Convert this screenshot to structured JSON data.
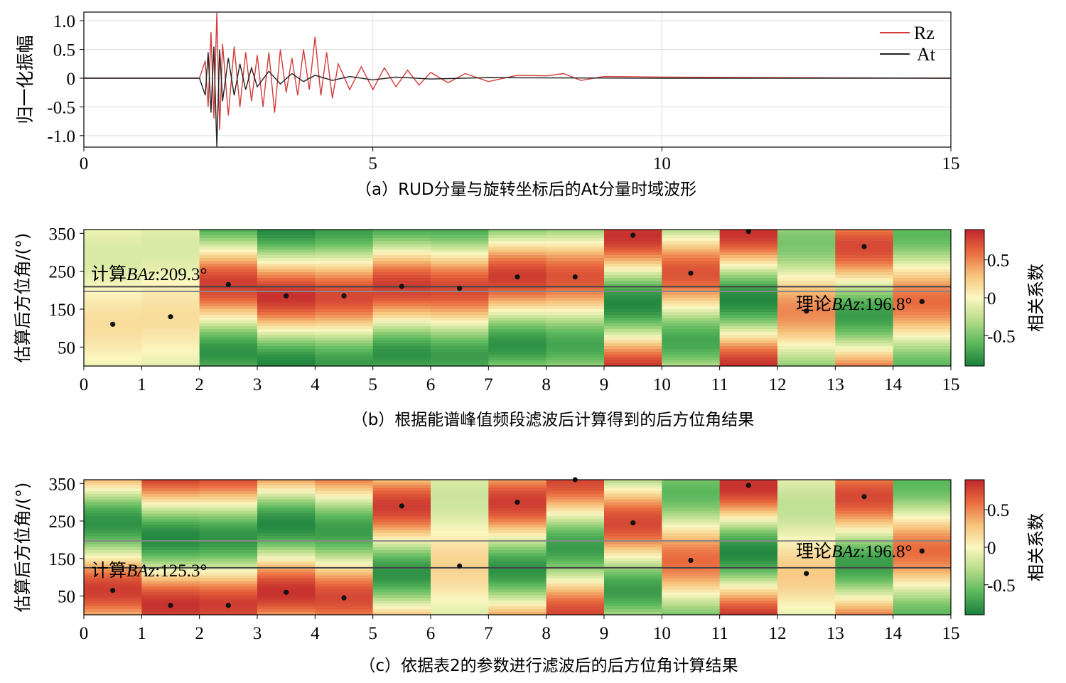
{
  "colors": {
    "rz": "#d43a3a",
    "at": "#222222",
    "grid": "#dddddd",
    "computed_line": "#444444",
    "theory_line": "#888888",
    "colormap": [
      "#1a7f3c",
      "#5cb85c",
      "#b5dc8a",
      "#fbf7c0",
      "#f6c27a",
      "#e96b3f",
      "#c0262b"
    ]
  },
  "panel_a": {
    "caption": "（a）RUD分量与旋转坐标后的At分量时域波形",
    "ylabel": "归一化振幅",
    "legend": [
      "Rz",
      "At"
    ]
  },
  "panel_b": {
    "caption": "（b）根据能谱峰值频段滤波后计算得到的后方位角结果",
    "ylabel": "估算后方位角/(°)",
    "colorbar_label": "相关系数",
    "computed_label": "计算",
    "computed_value": ":209.3°",
    "theory_label": "理论",
    "theory_value": ":196.8°",
    "baz_symbol": "BAz"
  },
  "panel_c": {
    "caption": "（c）依据表2的参数进行滤波后的后方位角计算结果",
    "ylabel": "估算后方位角/(°)",
    "colorbar_label": "相关系数",
    "computed_label": "计算",
    "computed_value": ":125.3°",
    "theory_label": "理论",
    "theory_value": ":196.8°",
    "baz_symbol": "BAz"
  },
  "chart_data": [
    {
      "type": "line",
      "title": "（a）RUD分量与旋转坐标后的At分量时域波形",
      "xlabel": "",
      "ylabel": "归一化振幅",
      "xlim": [
        0,
        15
      ],
      "ylim": [
        -1.2,
        1.15
      ],
      "xticks": [
        0,
        5,
        10,
        15
      ],
      "yticks": [
        1.0,
        0.5,
        0,
        -0.5,
        -1.0
      ],
      "ytick_labels": [
        "1.0",
        "0.5",
        "0",
        "-0.5",
        "-1.0"
      ],
      "grid": true,
      "legend_position": "top-right",
      "series": [
        {
          "name": "Rz",
          "x": [
            0,
            2.0,
            2.1,
            2.15,
            2.2,
            2.25,
            2.3,
            2.35,
            2.4,
            2.5,
            2.6,
            2.7,
            2.8,
            2.9,
            3.0,
            3.1,
            3.2,
            3.3,
            3.4,
            3.5,
            3.6,
            3.7,
            3.8,
            3.9,
            4.0,
            4.1,
            4.2,
            4.3,
            4.4,
            4.6,
            4.8,
            5.0,
            5.2,
            5.4,
            5.6,
            5.8,
            6.0,
            6.3,
            6.6,
            7.0,
            7.5,
            8.0,
            8.3,
            8.6,
            9.0,
            10.0,
            12.0,
            15.0
          ],
          "values": [
            0,
            0,
            0.3,
            -0.5,
            0.8,
            -0.7,
            1.15,
            -0.9,
            0.6,
            -0.65,
            0.55,
            -0.5,
            0.45,
            -0.4,
            0.4,
            -0.5,
            0.45,
            -0.6,
            0.5,
            -0.25,
            0.35,
            -0.3,
            0.5,
            -0.2,
            0.72,
            -0.3,
            0.45,
            -0.35,
            0.25,
            -0.2,
            0.2,
            -0.2,
            0.18,
            -0.15,
            0.14,
            -0.12,
            0.1,
            -0.08,
            0.08,
            -0.06,
            0.05,
            0.04,
            0.08,
            -0.04,
            0.03,
            0.02,
            0.01,
            0
          ]
        },
        {
          "name": "At",
          "x": [
            0,
            2.0,
            2.1,
            2.15,
            2.2,
            2.25,
            2.3,
            2.35,
            2.4,
            2.5,
            2.6,
            2.7,
            2.8,
            2.9,
            3.0,
            3.2,
            3.4,
            3.6,
            3.8,
            4.0,
            4.3,
            4.6,
            5.0,
            5.4,
            6.0,
            7.0,
            8.0,
            10.0,
            15.0
          ],
          "values": [
            0,
            0,
            -0.3,
            0.45,
            -0.6,
            0.55,
            -1.2,
            0.5,
            -0.4,
            0.35,
            -0.3,
            0.25,
            -0.2,
            0.18,
            -0.15,
            0.12,
            -0.1,
            0.08,
            -0.06,
            0.05,
            -0.04,
            0.03,
            -0.03,
            0.02,
            -0.015,
            0.01,
            0.005,
            0,
            0
          ]
        }
      ]
    },
    {
      "type": "heatmap",
      "title": "（b）根据能谱峰值频段滤波后计算得到的后方位角结果",
      "xlabel": "",
      "ylabel": "估算后方位角/(°)",
      "xlim": [
        0,
        15
      ],
      "ylim": [
        0,
        360
      ],
      "xticks": [
        0,
        1,
        2,
        3,
        4,
        5,
        6,
        7,
        8,
        9,
        10,
        11,
        12,
        13,
        14,
        15
      ],
      "yticks": [
        50,
        150,
        250,
        350
      ],
      "colorbar": {
        "label": "相关系数",
        "range": [
          -0.9,
          0.9
        ],
        "ticks": [
          0.5,
          0,
          -0.5
        ],
        "tick_labels": [
          "0.5",
          "0",
          "-0.5"
        ]
      },
      "window_peak_baz": [
        110,
        130,
        215,
        185,
        185,
        210,
        205,
        235,
        235,
        345,
        245,
        355,
        145,
        315,
        170
      ],
      "window_peak_corr": [
        0.15,
        0.15,
        0.8,
        0.85,
        0.75,
        0.8,
        0.75,
        0.8,
        0.7,
        0.85,
        0.7,
        0.85,
        0.5,
        0.75,
        0.6
      ],
      "computed_baz": 209.3,
      "theory_baz": 196.8
    },
    {
      "type": "heatmap",
      "title": "（c）依据表2的参数进行滤波后的后方位角计算结果",
      "xlabel": "",
      "ylabel": "估算后方位角/(°)",
      "xlim": [
        0,
        15
      ],
      "ylim": [
        0,
        360
      ],
      "xticks": [
        0,
        1,
        2,
        3,
        4,
        5,
        6,
        7,
        8,
        9,
        10,
        11,
        12,
        13,
        14,
        15
      ],
      "yticks": [
        50,
        150,
        250,
        350
      ],
      "colorbar": {
        "label": "相关系数",
        "range": [
          -0.9,
          0.9
        ],
        "ticks": [
          0.5,
          0,
          -0.5
        ],
        "tick_labels": [
          "0.5",
          "0",
          "-0.5"
        ]
      },
      "window_peak_baz": [
        65,
        25,
        25,
        60,
        45,
        290,
        130,
        300,
        360,
        245,
        145,
        345,
        110,
        315,
        170
      ],
      "window_peak_corr": [
        0.8,
        0.85,
        0.8,
        0.85,
        0.75,
        0.8,
        0.2,
        0.8,
        0.75,
        0.75,
        0.6,
        0.85,
        0.25,
        0.75,
        0.6
      ],
      "computed_baz": 125.3,
      "theory_baz": 196.8
    }
  ]
}
